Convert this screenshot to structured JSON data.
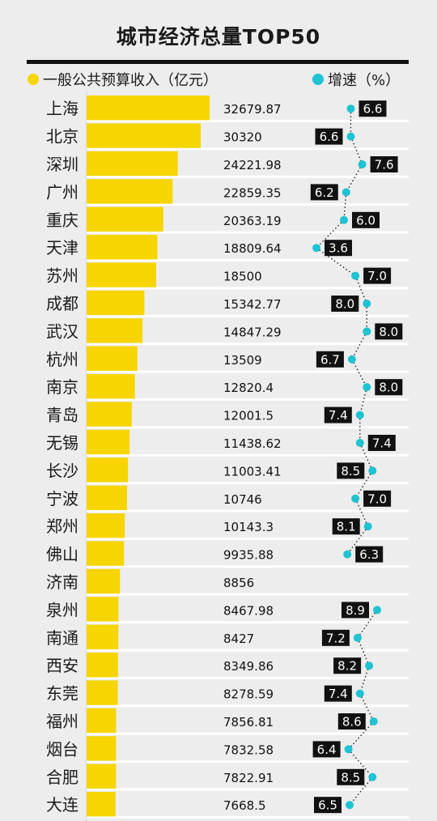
{
  "chart_data": {
    "type": "bar",
    "title": "城市经济总量TOP50",
    "categories": [
      "上海",
      "北京",
      "深圳",
      "广州",
      "重庆",
      "天津",
      "苏州",
      "成都",
      "武汉",
      "杭州",
      "南京",
      "青岛",
      "无锡",
      "长沙",
      "宁波",
      "郑州",
      "佛山",
      "济南",
      "泉州",
      "南通",
      "西安",
      "东莞",
      "福州",
      "烟台",
      "合肥",
      "大连"
    ],
    "series": [
      {
        "name": "一般公共预算收入（亿元）",
        "values": [
          "32679.87",
          "30320",
          "24221.98",
          "22859.35",
          "20363.19",
          "18809.64",
          "18500",
          "15342.77",
          "14847.29",
          "13509",
          "12820.4",
          "12001.5",
          "11438.62",
          "11003.41",
          "10746",
          "10143.3",
          "9935.88",
          "8856",
          "8467.98",
          "8427",
          "8349.86",
          "8278.59",
          "7856.81",
          "7832.58",
          "7822.91",
          "7668.5"
        ]
      },
      {
        "name": "增速（%）",
        "values": [
          "6.6",
          "6.6",
          "7.6",
          "6.2",
          "6.0",
          "3.6",
          "7.0",
          "8.0",
          "8.0",
          "6.7",
          "8.0",
          "7.4",
          "7.4",
          "8.5",
          "7.0",
          "8.1",
          "6.3",
          "",
          "8.9",
          "7.2",
          "8.2",
          "7.4",
          "8.6",
          "6.4",
          "8.5",
          "6.5"
        ]
      }
    ],
    "xlim": [
      0,
      32679.87
    ],
    "growth_scale": [
      3.6,
      8.9
    ],
    "legend_position": "top",
    "grid": false,
    "colors": {
      "bar": "#f7d500",
      "dot": "#1fc3d3",
      "badge": "#111111",
      "row_line": "#ffffff"
    }
  }
}
